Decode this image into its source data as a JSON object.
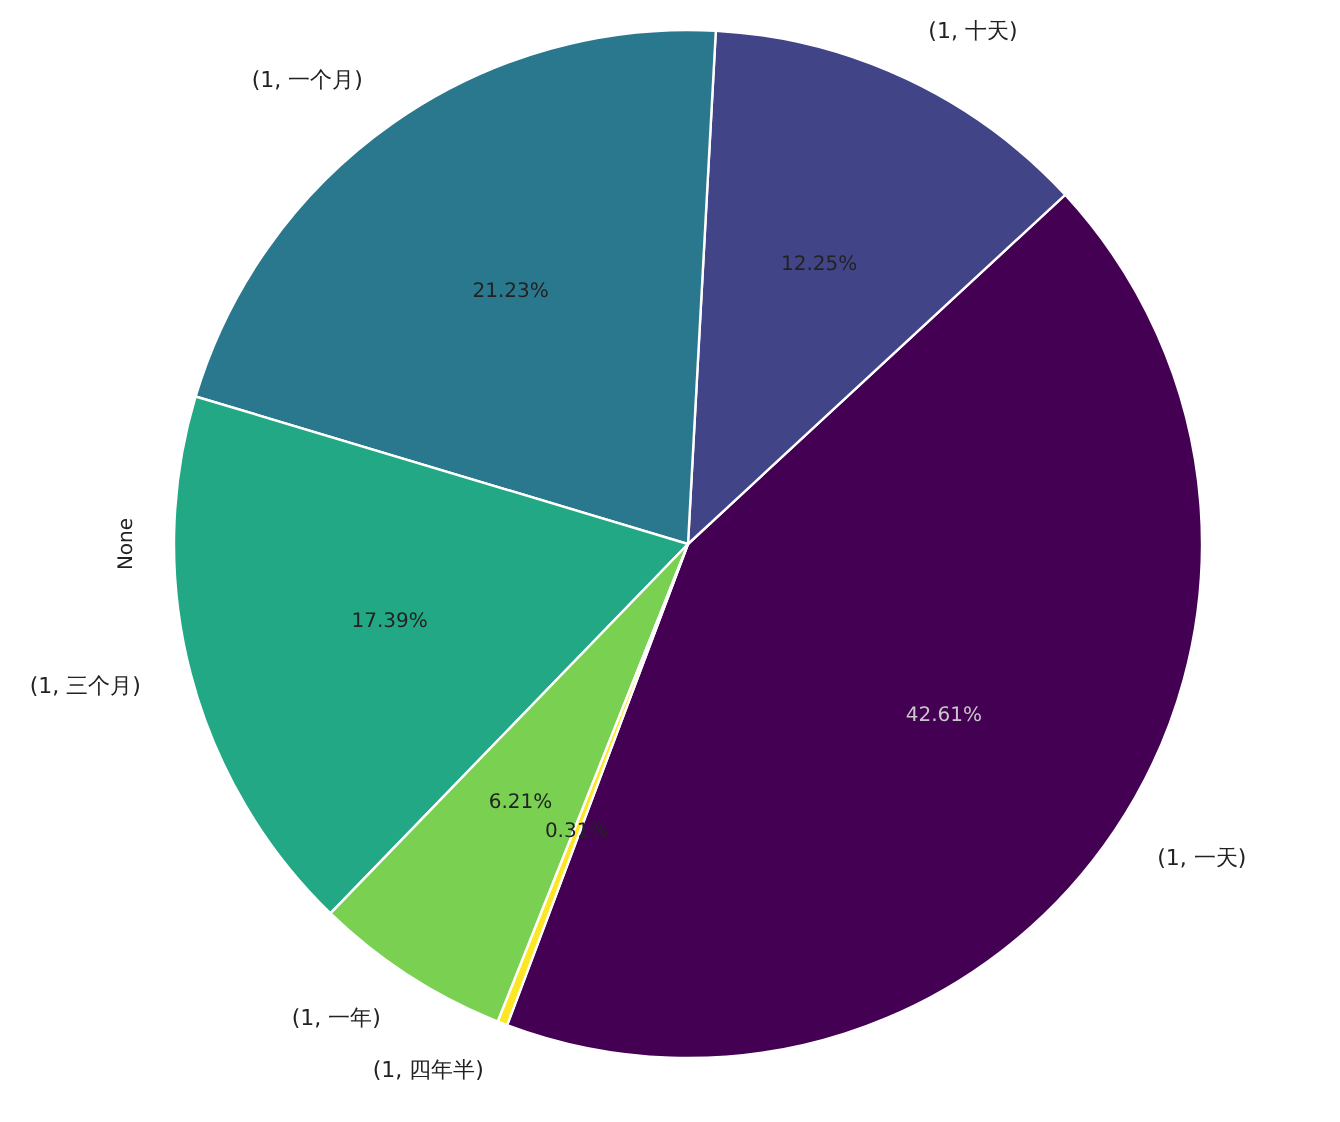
{
  "chart_data": {
    "type": "pie",
    "ylabel": "None",
    "categories": [
      "(1, 一天)",
      "(1, 十天)",
      "(1, 一个月)",
      "(1, 三个月)",
      "(1, 一年)",
      "(1, 四年半)"
    ],
    "values": [
      42.61,
      12.25,
      21.23,
      17.39,
      6.21,
      0.31
    ],
    "colors": [
      "#440154",
      "#414487",
      "#2a788e",
      "#22a884",
      "#7ad151",
      "#fde725"
    ],
    "value_labels": [
      "42.61%",
      "12.25%",
      "21.23%",
      "17.39%",
      "6.21%",
      "0.31%"
    ]
  }
}
